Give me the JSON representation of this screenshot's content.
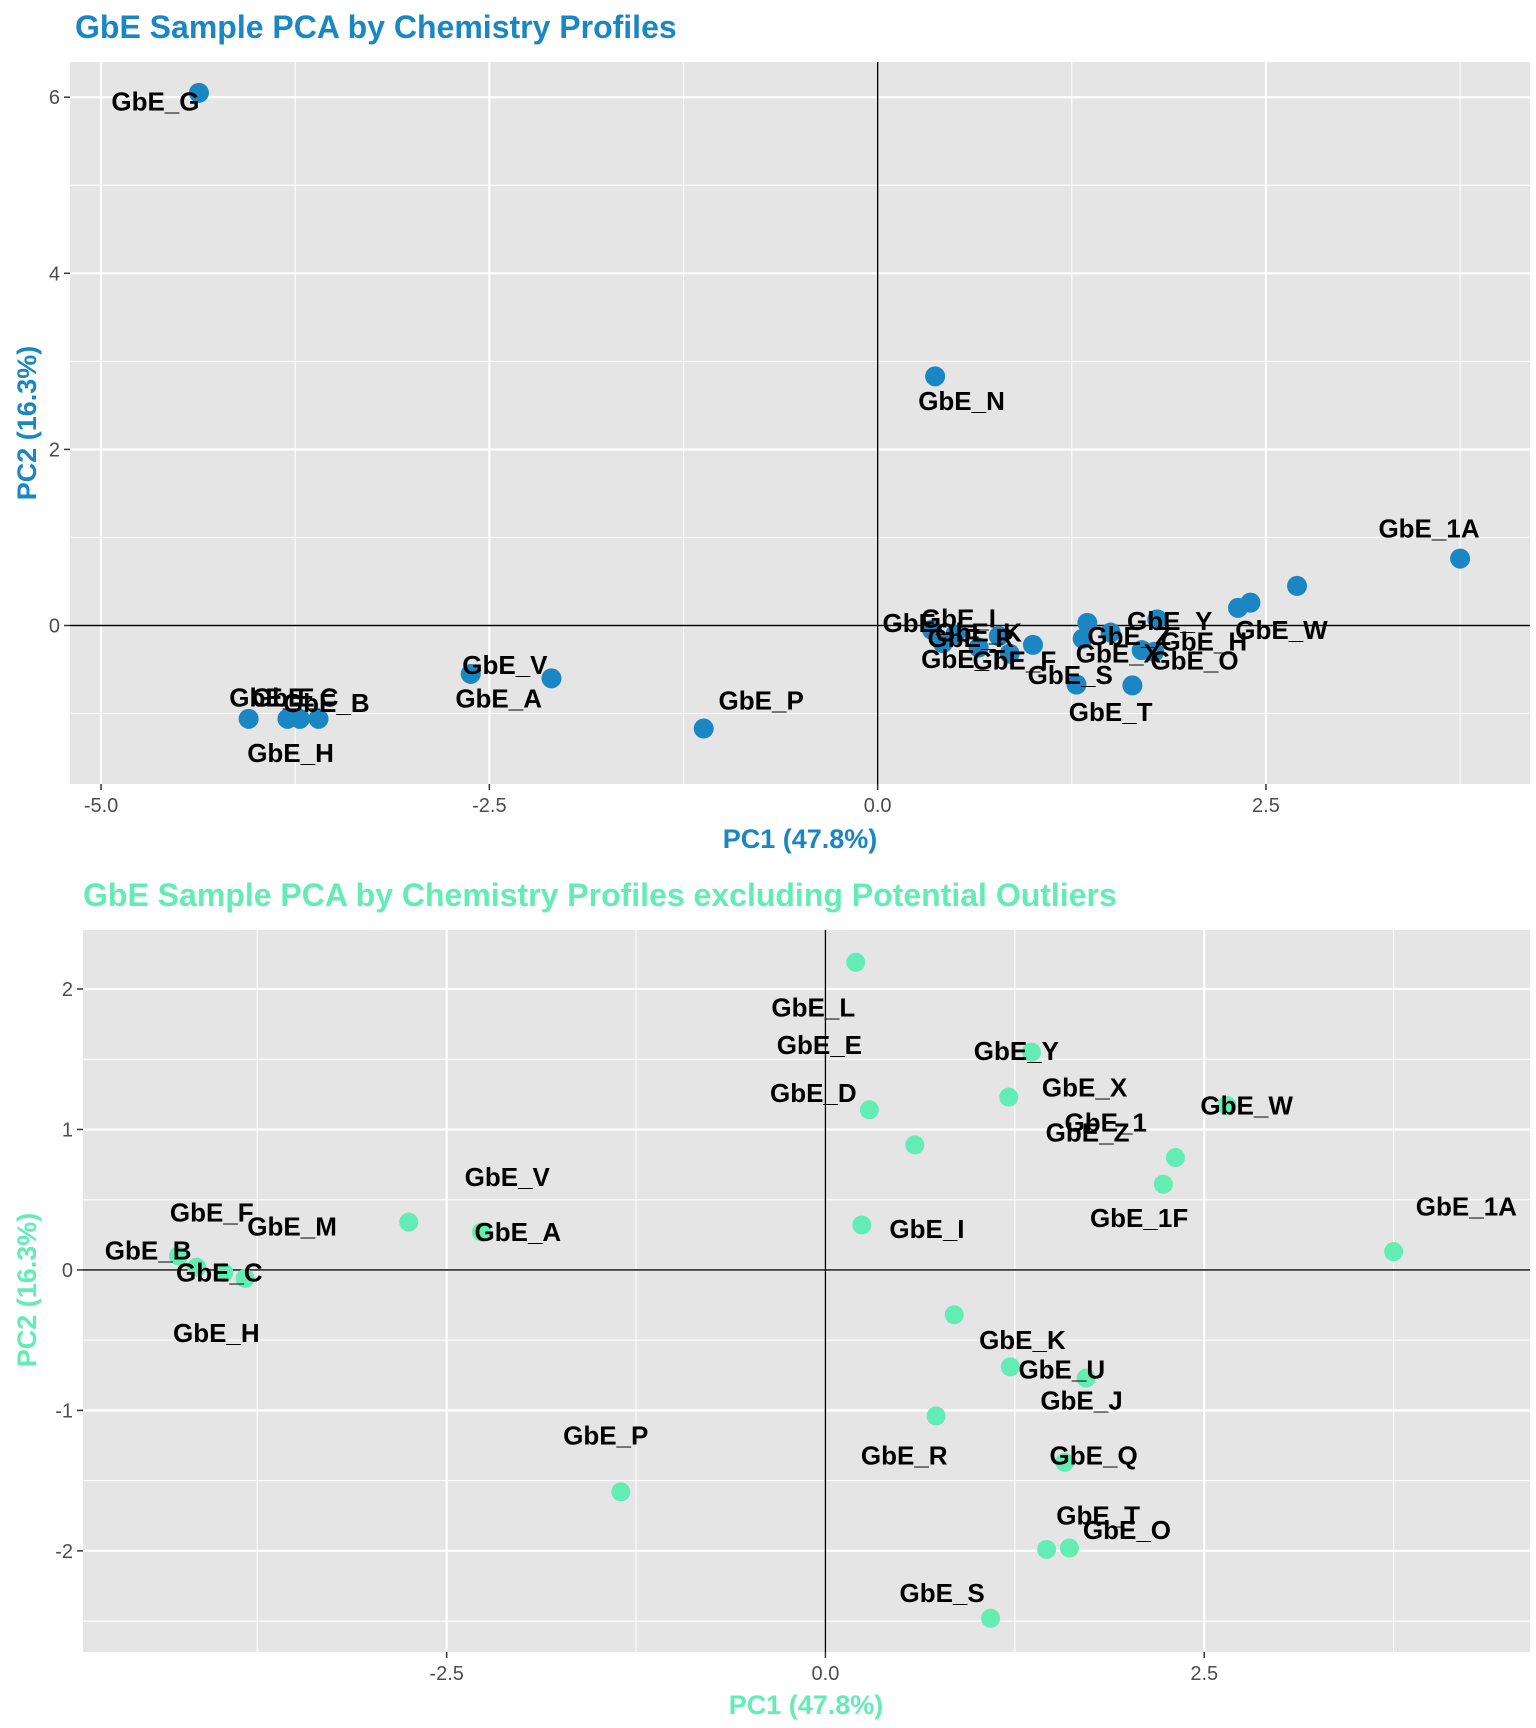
{
  "colors": {
    "top_series": "#1a86c4",
    "bottom_series": "#63ecb5",
    "panel_bg": "#e5e5e5",
    "grid": "#ffffff",
    "axis_line": "#000000"
  },
  "chart_data": [
    {
      "type": "scatter",
      "title": "GbE Sample PCA by Chemistry Profiles",
      "xlabel": "PC1 (47.8%)",
      "ylabel": "PC2 (16.3%)",
      "xlim": [
        -5.2,
        4.2
      ],
      "ylim": [
        -1.8,
        6.4
      ],
      "xticks": [
        -5.0,
        -2.5,
        0.0,
        2.5
      ],
      "xtick_labels": [
        "-5.0",
        "-2.5",
        "0.0",
        "2.5"
      ],
      "yticks": [
        0,
        2,
        4,
        6
      ],
      "ytick_labels": [
        "0",
        "2",
        "4",
        "6"
      ],
      "grid": true,
      "reference_lines": {
        "x": 0,
        "y": 0
      },
      "point_color": "#1a86c4",
      "points": [
        {
          "x": -4.37,
          "y": 6.05
        },
        {
          "x": 0.37,
          "y": 2.83
        },
        {
          "x": 3.75,
          "y": 0.76
        },
        {
          "x": 2.7,
          "y": 0.45
        },
        {
          "x": 2.4,
          "y": 0.26
        },
        {
          "x": 2.32,
          "y": 0.2
        },
        {
          "x": 1.8,
          "y": 0.07
        },
        {
          "x": 1.35,
          "y": 0.03
        },
        {
          "x": 1.5,
          "y": -0.08
        },
        {
          "x": 0.35,
          "y": -0.05
        },
        {
          "x": 0.5,
          "y": -0.1
        },
        {
          "x": 0.78,
          "y": -0.12
        },
        {
          "x": 0.42,
          "y": -0.2
        },
        {
          "x": 1.0,
          "y": -0.22
        },
        {
          "x": 0.65,
          "y": -0.25
        },
        {
          "x": 1.7,
          "y": -0.28
        },
        {
          "x": 1.32,
          "y": -0.15
        },
        {
          "x": 1.78,
          "y": -0.3
        },
        {
          "x": 0.85,
          "y": -0.32
        },
        {
          "x": 1.28,
          "y": -0.67
        },
        {
          "x": 1.64,
          "y": -0.68
        },
        {
          "x": -2.62,
          "y": -0.55
        },
        {
          "x": -2.1,
          "y": -0.6
        },
        {
          "x": -1.12,
          "y": -1.17
        },
        {
          "x": -4.05,
          "y": -1.06
        },
        {
          "x": -3.8,
          "y": -1.06
        },
        {
          "x": -3.72,
          "y": -1.06
        },
        {
          "x": -3.6,
          "y": -1.06
        }
      ],
      "labels": [
        {
          "text": "GbE_G",
          "x": -4.65,
          "y": 5.95
        },
        {
          "text": "GbE_N",
          "x": 0.54,
          "y": 2.55
        },
        {
          "text": "GbE_1A",
          "x": 3.55,
          "y": 1.1
        },
        {
          "text": "GbE_I",
          "x": 0.52,
          "y": 0.08
        },
        {
          "text": "GbE_",
          "x": 0.25,
          "y": 0.03
        },
        {
          "text": "GbE_K",
          "x": 0.65,
          "y": -0.08
        },
        {
          "text": "GbE_R",
          "x": 0.6,
          "y": -0.14
        },
        {
          "text": "GbE_T",
          "x": 0.55,
          "y": -0.38
        },
        {
          "text": "GbE_F",
          "x": 0.88,
          "y": -0.4
        },
        {
          "text": "GbE_Y",
          "x": 1.88,
          "y": 0.05
        },
        {
          "text": "GbE_W",
          "x": 2.6,
          "y": -0.05
        },
        {
          "text": "GbE_H",
          "x": 2.1,
          "y": -0.18
        },
        {
          "text": "GbE_Z",
          "x": 1.62,
          "y": -0.12
        },
        {
          "text": "GbE_X",
          "x": 1.55,
          "y": -0.32
        },
        {
          "text": "GbE_O",
          "x": 2.04,
          "y": -0.4
        },
        {
          "text": "GbE_S",
          "x": 1.24,
          "y": -0.56
        },
        {
          "text": "GbE_T",
          "x": 1.5,
          "y": -0.98
        },
        {
          "text": "GbE_V",
          "x": -2.4,
          "y": -0.45
        },
        {
          "text": "GbE_A",
          "x": -2.44,
          "y": -0.83
        },
        {
          "text": "GbE_P",
          "x": -0.75,
          "y": -0.85
        },
        {
          "text": "GbE_B",
          "x": -3.55,
          "y": -0.88
        },
        {
          "text": "GbE_E",
          "x": -3.9,
          "y": -0.82
        },
        {
          "text": "GbE_C",
          "x": -3.75,
          "y": -0.82
        },
        {
          "text": "GbE_H",
          "x": -3.78,
          "y": -1.45
        }
      ]
    },
    {
      "type": "scatter",
      "title": "GbE Sample PCA by Chemistry Profiles excluding Potential Outliers",
      "xlabel": "PC1 (47.8%)",
      "ylabel": "PC2 (16.3%)",
      "xlim": [
        -4.9,
        4.65
      ],
      "ylim": [
        -2.72,
        2.42
      ],
      "xticks": [
        -2.5,
        0.0,
        2.5
      ],
      "xtick_labels": [
        "-2.5",
        "0.0",
        "2.5"
      ],
      "yticks": [
        -2,
        -1,
        0,
        1,
        2
      ],
      "ytick_labels": [
        "-2",
        "-1",
        "0",
        "1",
        "2"
      ],
      "grid": true,
      "reference_lines": {
        "x": 0,
        "y": 0
      },
      "point_color": "#63ecb5",
      "points": [
        {
          "x": 0.2,
          "y": 2.19
        },
        {
          "x": 1.36,
          "y": 1.55
        },
        {
          "x": 1.21,
          "y": 1.23
        },
        {
          "x": 0.29,
          "y": 1.14
        },
        {
          "x": 2.65,
          "y": 1.17
        },
        {
          "x": 0.59,
          "y": 0.89
        },
        {
          "x": 2.31,
          "y": 0.8
        },
        {
          "x": 2.23,
          "y": 0.61
        },
        {
          "x": 3.75,
          "y": 0.13
        },
        {
          "x": 0.24,
          "y": 0.32
        },
        {
          "x": -2.75,
          "y": 0.34
        },
        {
          "x": -2.27,
          "y": 0.27
        },
        {
          "x": -4.27,
          "y": 0.1
        },
        {
          "x": -4.15,
          "y": 0.02
        },
        {
          "x": -3.97,
          "y": -0.02
        },
        {
          "x": -3.83,
          "y": -0.06
        },
        {
          "x": 0.85,
          "y": -0.32
        },
        {
          "x": 1.22,
          "y": -0.69
        },
        {
          "x": 1.72,
          "y": -0.77
        },
        {
          "x": 0.73,
          "y": -1.04
        },
        {
          "x": 1.58,
          "y": -1.37
        },
        {
          "x": 1.46,
          "y": -1.99
        },
        {
          "x": 1.61,
          "y": -1.98
        },
        {
          "x": -1.35,
          "y": -1.58
        },
        {
          "x": 1.09,
          "y": -2.48
        }
      ],
      "labels": [
        {
          "text": "GbE_L",
          "x": -0.08,
          "y": 1.87
        },
        {
          "text": "GbE_E",
          "x": -0.04,
          "y": 1.6
        },
        {
          "text": "GbE_D",
          "x": -0.08,
          "y": 1.26
        },
        {
          "text": "GbE_Y",
          "x": 1.26,
          "y": 1.56
        },
        {
          "text": "GbE_X",
          "x": 1.71,
          "y": 1.3
        },
        {
          "text": "GbE_1",
          "x": 1.85,
          "y": 1.05
        },
        {
          "text": "GbE_Z",
          "x": 1.73,
          "y": 0.98
        },
        {
          "text": "GbE_W",
          "x": 2.78,
          "y": 1.17
        },
        {
          "text": "GbE_V",
          "x": -2.1,
          "y": 0.66
        },
        {
          "text": "GbE_1F",
          "x": 2.07,
          "y": 0.37
        },
        {
          "text": "GbE_1A",
          "x": 4.23,
          "y": 0.45
        },
        {
          "text": "GbE_F",
          "x": -4.05,
          "y": 0.41
        },
        {
          "text": "GbE_M",
          "x": -3.52,
          "y": 0.31
        },
        {
          "text": "GbE_B",
          "x": -4.47,
          "y": 0.14
        },
        {
          "text": "GbE_C",
          "x": -4.0,
          "y": -0.02
        },
        {
          "text": "GbE_A",
          "x": -2.03,
          "y": 0.27
        },
        {
          "text": "GbE_I",
          "x": 0.67,
          "y": 0.29
        },
        {
          "text": "GbE_H",
          "x": -4.02,
          "y": -0.45
        },
        {
          "text": "GbE_K",
          "x": 1.3,
          "y": -0.5
        },
        {
          "text": "GbE_U",
          "x": 1.56,
          "y": -0.71
        },
        {
          "text": "GbE_J",
          "x": 1.69,
          "y": -0.93
        },
        {
          "text": "GbE_P",
          "x": -1.45,
          "y": -1.18
        },
        {
          "text": "GbE_R",
          "x": 0.52,
          "y": -1.32
        },
        {
          "text": "GbE_Q",
          "x": 1.77,
          "y": -1.32
        },
        {
          "text": "GbE_T",
          "x": 1.8,
          "y": -1.75
        },
        {
          "text": "GbE_O",
          "x": 1.99,
          "y": -1.85
        },
        {
          "text": "GbE_S",
          "x": 0.77,
          "y": -2.3
        }
      ]
    }
  ]
}
